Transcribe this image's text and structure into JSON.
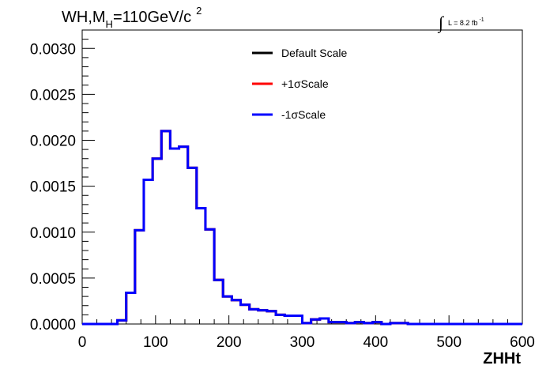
{
  "chart_data": {
    "type": "step",
    "title_main": "WH,M",
    "title_sub": "H",
    "title_rest": "=110GeV/c",
    "title_sup": "2",
    "lumi_text": "L = 8.2 fb",
    "lumi_sup": "-1",
    "lumi_integral": "∫",
    "xlabel": "ZHHt",
    "ylabel": "",
    "xlim": [
      0,
      600
    ],
    "ylim": [
      0,
      0.0032
    ],
    "x_ticks": [
      "0",
      "100",
      "200",
      "300",
      "400",
      "500",
      "600"
    ],
    "x_tick_values": [
      0,
      100,
      200,
      300,
      400,
      500,
      600
    ],
    "y_ticks": [
      "0.0000",
      "0.0005",
      "0.0010",
      "0.0015",
      "0.0020",
      "0.0025",
      "0.0030"
    ],
    "y_tick_values": [
      0,
      0.0005,
      0.001,
      0.0015,
      0.002,
      0.0025,
      0.003
    ],
    "bin_edges": [
      0,
      12,
      24,
      36,
      48,
      60,
      72,
      84,
      96,
      108,
      120,
      132,
      144,
      156,
      168,
      180,
      192,
      204,
      216,
      228,
      240,
      252,
      264,
      276,
      288,
      300,
      312,
      324,
      336,
      348,
      360,
      372,
      384,
      396,
      408,
      420,
      432,
      444,
      456,
      468,
      480,
      492,
      504,
      516,
      528,
      540,
      552,
      564,
      576,
      588,
      600
    ],
    "series": [
      {
        "name": "Default Scale",
        "color": "#000000",
        "values": [
          0,
          0,
          0,
          0,
          4e-05,
          0.00034,
          0.00102,
          0.00157,
          0.0018,
          0.0021,
          0.00191,
          0.00193,
          0.0017,
          0.00126,
          0.00103,
          0.00048,
          0.0003,
          0.00026,
          0.00021,
          0.00016,
          0.00015,
          0.00014,
          0.0001,
          9e-05,
          9e-05,
          1e-05,
          5e-05,
          6e-05,
          2e-05,
          2e-05,
          1e-05,
          2e-05,
          1e-05,
          2e-05,
          0,
          1e-05,
          1e-05,
          0,
          0,
          0,
          0,
          0,
          0,
          0,
          0,
          0,
          0,
          0,
          0,
          0
        ]
      },
      {
        "name": "+1σScale",
        "color": "#ff0000",
        "values": [
          0,
          0,
          0,
          0,
          4e-05,
          0.00034,
          0.00102,
          0.00157,
          0.0018,
          0.0021,
          0.00191,
          0.00193,
          0.0017,
          0.00126,
          0.00103,
          0.00048,
          0.0003,
          0.00026,
          0.00021,
          0.00016,
          0.00015,
          0.00014,
          0.0001,
          9e-05,
          9e-05,
          1e-05,
          5e-05,
          6e-05,
          2e-05,
          2e-05,
          1e-05,
          2e-05,
          1e-05,
          2e-05,
          0,
          1e-05,
          1e-05,
          0,
          0,
          0,
          0,
          0,
          0,
          0,
          0,
          0,
          0,
          0,
          0,
          0
        ]
      },
      {
        "name": "-1σScale",
        "color": "#0000ff",
        "values": [
          0,
          0,
          0,
          0,
          4e-05,
          0.00034,
          0.00102,
          0.00157,
          0.0018,
          0.0021,
          0.00191,
          0.00193,
          0.0017,
          0.00126,
          0.00103,
          0.00048,
          0.0003,
          0.00026,
          0.00021,
          0.00016,
          0.00015,
          0.00014,
          0.0001,
          9e-05,
          9e-05,
          1e-05,
          5e-05,
          6e-05,
          2e-05,
          2e-05,
          1e-05,
          2e-05,
          1e-05,
          2e-05,
          0,
          1e-05,
          1e-05,
          0,
          0,
          0,
          0,
          0,
          0,
          0,
          0,
          0,
          0,
          0,
          0,
          0
        ]
      }
    ],
    "legend_position": "top-center",
    "grid": false
  }
}
